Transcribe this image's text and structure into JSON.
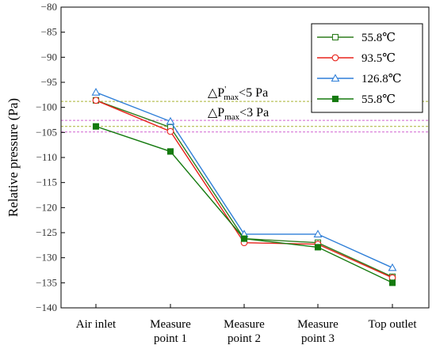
{
  "chart_data": {
    "type": "line",
    "title": "",
    "xlabel": "",
    "ylabel": "Relative pressure (Pa)",
    "ylim": [
      -140,
      -80
    ],
    "yticks": [
      -80,
      -85,
      -90,
      -95,
      -100,
      -105,
      -110,
      -115,
      -120,
      -125,
      -130,
      -135,
      -140
    ],
    "categories": [
      [
        "Air inlet"
      ],
      [
        "Measure",
        "point 1"
      ],
      [
        "Measure",
        "point 2"
      ],
      [
        "Measure",
        "point 3"
      ],
      [
        "Top outlet"
      ]
    ],
    "series": [
      {
        "name": "55.8℃",
        "color": "#2e7d1e",
        "marker": "square-open",
        "values": [
          -98.6,
          -104.0,
          -126.2,
          -127.0,
          -133.8
        ]
      },
      {
        "name": "93.5℃",
        "color": "#e8231c",
        "marker": "circle-open",
        "values": [
          -98.6,
          -104.8,
          -127.0,
          -127.3,
          -134.0
        ]
      },
      {
        "name": "126.8℃",
        "color": "#2f7fd8",
        "marker": "triangle-open",
        "values": [
          -97.0,
          -102.8,
          -125.3,
          -125.3,
          -132.0
        ]
      },
      {
        "name": "55.8℃",
        "color": "#157a0f",
        "marker": "square-filled",
        "values": [
          -103.8,
          -108.8,
          -126.2,
          -127.9,
          -135.0
        ]
      }
    ],
    "reference_lines": [
      {
        "y": -98.8,
        "color": "#a8b232"
      },
      {
        "y": -103.8,
        "color": "#a8b232"
      },
      {
        "y": -102.6,
        "color": "#d062d0"
      },
      {
        "y": -104.9,
        "color": "#d062d0"
      }
    ],
    "annotations": {
      "dp_prime": {
        "delta": "△P",
        "prime": "'",
        "sub": "max",
        "rest": "<5 Pa"
      },
      "dp": {
        "delta": "△P",
        "sub": "max",
        "rest": "<3 Pa"
      }
    },
    "legend_position": "top-right",
    "grid": false
  }
}
